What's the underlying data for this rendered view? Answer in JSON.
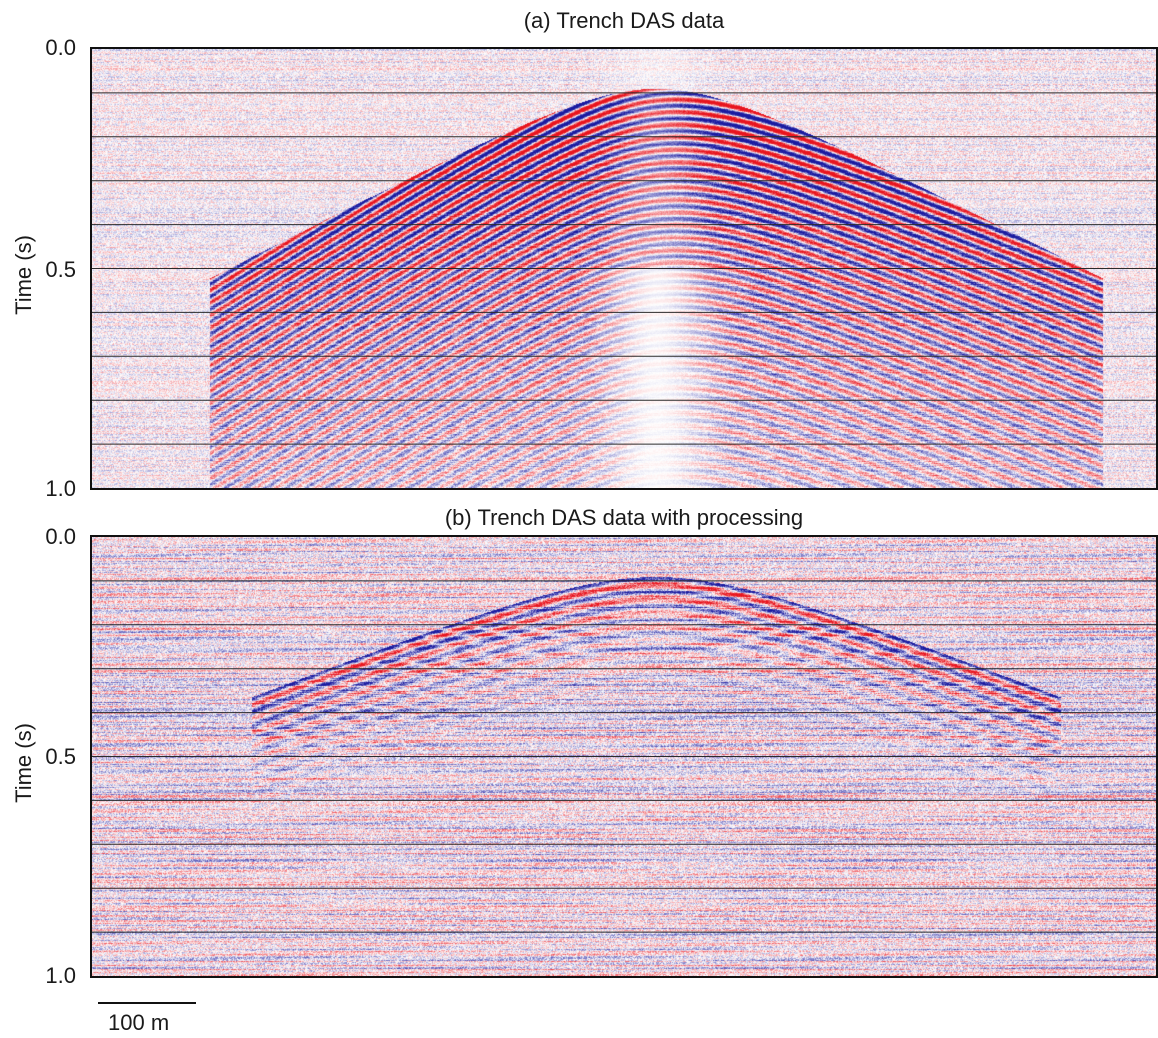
{
  "figure": {
    "panels": [
      {
        "title": "(a) Trench DAS data",
        "ylabel": "Time (s)",
        "yticks": [
          "0.0",
          "0.5",
          "1.0"
        ],
        "style": "raw"
      },
      {
        "title": "(b) Trench DAS data with processing",
        "ylabel": "Time (s)",
        "yticks": [
          "0.0",
          "0.5",
          "1.0"
        ],
        "style": "processed"
      }
    ],
    "scale_bar_label": "100 m"
  },
  "chart_data": [
    {
      "type": "heatmap",
      "title": "(a) Trench DAS data",
      "ylabel": "Time (s)",
      "ylim": [
        1.0,
        0.0
      ],
      "yticks": [
        0.0,
        0.5,
        1.0
      ],
      "grid_times": [
        0.1,
        0.2,
        0.3,
        0.4,
        0.5,
        0.6,
        0.7,
        0.8,
        0.9
      ],
      "colormap": [
        "#1a1aa0",
        "#ffffff",
        "#e8141e"
      ]
    },
    {
      "type": "heatmap",
      "title": "(b) Trench DAS data with processing",
      "ylabel": "Time (s)",
      "ylim": [
        1.0,
        0.0
      ],
      "yticks": [
        0.0,
        0.5,
        1.0
      ],
      "grid_times": [
        0.1,
        0.2,
        0.3,
        0.4,
        0.5,
        0.6,
        0.7,
        0.8,
        0.9
      ],
      "colormap": [
        "#1a1aa0",
        "#ffffff",
        "#e8141e"
      ]
    }
  ]
}
